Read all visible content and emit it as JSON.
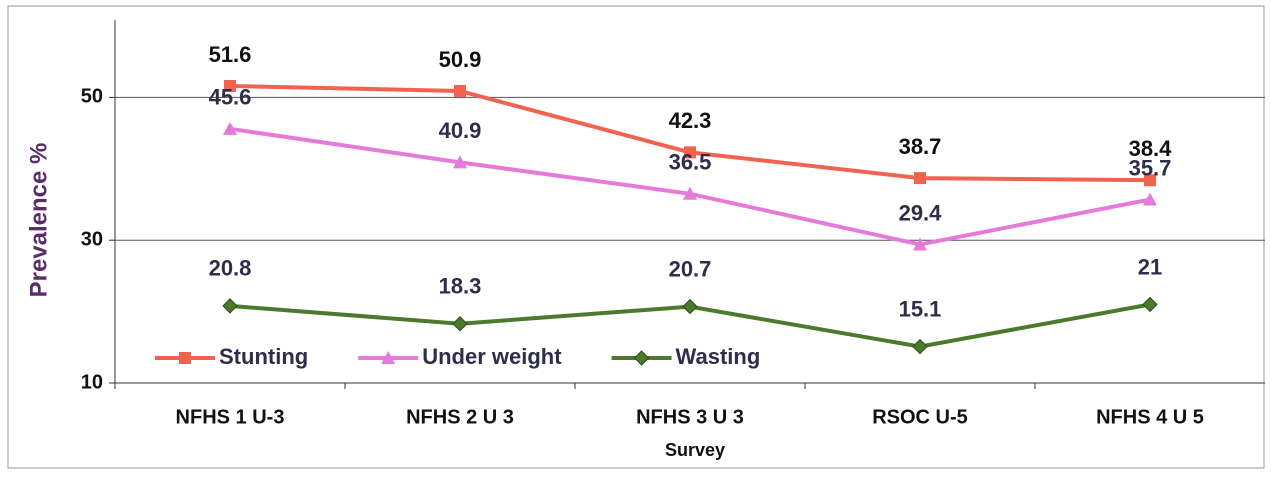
{
  "chart_data": {
    "type": "line",
    "categories": [
      "NFHS 1 U-3",
      "NFHS 2 U 3",
      "NFHS 3 U 3",
      "RSOC U-5",
      "NFHS 4 U 5"
    ],
    "series": [
      {
        "name": "Stunting",
        "color": "#f2634f",
        "marker": "square",
        "values": [
          51.6,
          50.9,
          42.3,
          38.7,
          38.4
        ]
      },
      {
        "name": "Under weight",
        "color": "#e57ad8",
        "marker": "triangle",
        "values": [
          45.6,
          40.9,
          36.5,
          29.4,
          35.7
        ]
      },
      {
        "name": "Wasting",
        "color": "#4c7a2c",
        "marker": "diamond",
        "values": [
          20.8,
          18.3,
          20.7,
          15.1,
          21
        ]
      }
    ],
    "xlabel": "Survey",
    "ylabel": "Prevalence %",
    "ylim": [
      10,
      60
    ],
    "yticks": [
      10,
      30,
      50
    ],
    "grid": true,
    "legend": "lower left"
  }
}
